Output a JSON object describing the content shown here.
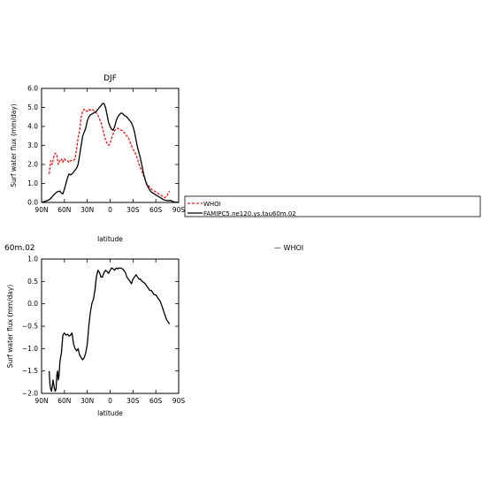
{
  "page": {
    "left_label": "60m.02",
    "right_label": "— WHOI"
  },
  "legend": {
    "items": [
      {
        "label": "WHOI",
        "color": "#e8191a",
        "dash": true
      },
      {
        "label": "FAMIPC5.ne120.ys.tau60m.02",
        "color": "#000000",
        "dash": false
      }
    ]
  },
  "chart_data": [
    {
      "type": "line",
      "title": "DJF",
      "xlabel": "latitude",
      "ylabel": "Surf water flux (mm/day)",
      "xlim": [
        90,
        -90
      ],
      "ylim": [
        0.0,
        6.0
      ],
      "xticks": [
        90,
        60,
        30,
        0,
        -30,
        -60,
        -90
      ],
      "xtick_labels": [
        "90N",
        "60N",
        "30N",
        "0",
        "30S",
        "60S",
        "90S"
      ],
      "yticks": [
        0,
        1,
        2,
        3,
        4,
        5,
        6
      ],
      "ytick_labels": [
        "0.0",
        "1.0",
        "2.0",
        "3.0",
        "4.0",
        "5.0",
        "6.0"
      ],
      "series": [
        {
          "name": "WHOI",
          "color": "#e8191a",
          "dash": true,
          "x": [
            80,
            78,
            76,
            74,
            72,
            70,
            68,
            66,
            64,
            62,
            60,
            58,
            56,
            54,
            52,
            50,
            48,
            46,
            44,
            42,
            40,
            38,
            36,
            34,
            32,
            30,
            28,
            26,
            24,
            22,
            20,
            18,
            16,
            14,
            12,
            10,
            8,
            6,
            4,
            2,
            0,
            -2,
            -4,
            -6,
            -8,
            -10,
            -12,
            -14,
            -16,
            -18,
            -20,
            -22,
            -24,
            -26,
            -28,
            -30,
            -32,
            -34,
            -36,
            -38,
            -40,
            -42,
            -44,
            -46,
            -48,
            -50,
            -52,
            -54,
            -56,
            -58,
            -60,
            -62,
            -64,
            -66,
            -68,
            -70,
            -72,
            -74,
            -76,
            -78
          ],
          "y": [
            1.5,
            2.2,
            2.0,
            2.4,
            2.6,
            2.5,
            2.0,
            2.2,
            2.3,
            2.1,
            2.3,
            2.2,
            2.2,
            2.1,
            2.2,
            2.2,
            2.2,
            2.3,
            2.8,
            3.4,
            3.8,
            4.5,
            4.8,
            4.9,
            4.8,
            4.8,
            4.9,
            4.85,
            4.9,
            4.85,
            4.8,
            4.7,
            4.6,
            4.4,
            4.2,
            3.9,
            3.6,
            3.3,
            3.1,
            3.0,
            3.1,
            3.4,
            3.6,
            3.8,
            3.85,
            3.9,
            3.85,
            3.8,
            3.8,
            3.7,
            3.6,
            3.5,
            3.4,
            3.2,
            3.0,
            2.8,
            2.7,
            2.5,
            2.3,
            2.0,
            1.8,
            1.6,
            1.4,
            1.2,
            1.0,
            0.9,
            0.8,
            0.7,
            0.65,
            0.6,
            0.55,
            0.5,
            0.45,
            0.4,
            0.35,
            0.3,
            0.25,
            0.3,
            0.45,
            0.6
          ]
        },
        {
          "name": "FAMIPC5.ne120.ys.tau60m.02",
          "color": "#000000",
          "dash": false,
          "x": [
            90,
            86,
            82,
            78,
            74,
            70,
            66,
            64,
            62,
            60,
            58,
            56,
            54,
            52,
            50,
            48,
            46,
            44,
            42,
            40,
            38,
            36,
            34,
            32,
            30,
            28,
            26,
            24,
            22,
            20,
            18,
            16,
            14,
            12,
            10,
            8,
            6,
            4,
            2,
            0,
            -2,
            -4,
            -6,
            -8,
            -10,
            -12,
            -14,
            -16,
            -18,
            -20,
            -22,
            -24,
            -26,
            -28,
            -30,
            -32,
            -34,
            -36,
            -38,
            -40,
            -42,
            -44,
            -46,
            -48,
            -50,
            -52,
            -54,
            -56,
            -58,
            -60,
            -62,
            -64,
            -66,
            -68,
            -70,
            -72,
            -74,
            -76,
            -78,
            -80,
            -82,
            -84,
            -86,
            -88,
            -90
          ],
          "y": [
            0.0,
            0.05,
            0.1,
            0.2,
            0.4,
            0.55,
            0.6,
            0.5,
            0.45,
            0.7,
            1.0,
            1.3,
            1.5,
            1.45,
            1.5,
            1.6,
            1.7,
            1.8,
            2.0,
            2.5,
            3.0,
            3.5,
            3.7,
            3.9,
            4.3,
            4.5,
            4.6,
            4.65,
            4.7,
            4.75,
            4.8,
            4.9,
            5.0,
            5.1,
            5.2,
            5.2,
            5.0,
            4.6,
            4.2,
            4.0,
            3.85,
            3.8,
            4.0,
            4.3,
            4.5,
            4.6,
            4.7,
            4.7,
            4.6,
            4.55,
            4.5,
            4.4,
            4.3,
            4.2,
            4.0,
            3.7,
            3.3,
            2.9,
            2.6,
            2.3,
            1.9,
            1.5,
            1.2,
            0.95,
            0.8,
            0.65,
            0.55,
            0.5,
            0.45,
            0.4,
            0.35,
            0.3,
            0.25,
            0.2,
            0.15,
            0.12,
            0.1,
            0.1,
            0.1,
            0.1,
            0.05,
            0.03,
            0.02,
            0.01,
            0.0
          ]
        }
      ]
    },
    {
      "type": "line",
      "title": "",
      "xlabel": "latitude",
      "ylabel": "Surf water flux (mm/day)",
      "xlim": [
        90,
        -90
      ],
      "ylim": [
        -2.0,
        1.0
      ],
      "xticks": [
        90,
        60,
        30,
        0,
        -30,
        -60,
        -90
      ],
      "xtick_labels": [
        "90N",
        "60N",
        "30N",
        "0",
        "30S",
        "60S",
        "90S"
      ],
      "yticks": [
        -2.0,
        -1.5,
        -1.0,
        -0.5,
        0.0,
        0.5,
        1.0
      ],
      "ytick_labels": [
        "−2.0",
        "−1.5",
        "−1.0",
        "−0.5",
        "0.0",
        "0.5",
        "1.0"
      ],
      "series": [
        {
          "color": "#000000",
          "dash": false,
          "x": [
            80,
            79,
            78,
            77,
            76,
            75,
            74,
            73,
            72,
            71,
            70,
            69,
            68,
            67,
            66,
            65,
            64,
            62,
            60,
            58,
            56,
            54,
            52,
            50,
            48,
            46,
            44,
            42,
            40,
            38,
            36,
            34,
            32,
            30,
            28,
            26,
            24,
            22,
            20,
            18,
            16,
            14,
            12,
            10,
            8,
            6,
            4,
            2,
            0,
            -2,
            -4,
            -6,
            -8,
            -10,
            -12,
            -14,
            -16,
            -18,
            -20,
            -22,
            -24,
            -26,
            -28,
            -30,
            -32,
            -34,
            -36,
            -38,
            -40,
            -42,
            -44,
            -46,
            -48,
            -50,
            -52,
            -54,
            -56,
            -58,
            -60,
            -62,
            -64,
            -66,
            -68,
            -70,
            -72,
            -74,
            -76,
            -78
          ],
          "y": [
            -1.5,
            -1.8,
            -1.9,
            -1.95,
            -1.85,
            -1.7,
            -1.8,
            -1.9,
            -1.95,
            -1.9,
            -1.6,
            -1.5,
            -1.7,
            -1.6,
            -1.3,
            -1.2,
            -1.1,
            -0.7,
            -0.65,
            -0.7,
            -0.68,
            -0.72,
            -0.7,
            -0.65,
            -0.9,
            -1.0,
            -1.05,
            -1.0,
            -1.15,
            -1.2,
            -1.25,
            -1.2,
            -1.1,
            -0.9,
            -0.5,
            -0.2,
            0.0,
            0.1,
            0.3,
            0.6,
            0.75,
            0.7,
            0.6,
            0.6,
            0.7,
            0.75,
            0.72,
            0.68,
            0.75,
            0.8,
            0.78,
            0.75,
            0.8,
            0.78,
            0.8,
            0.8,
            0.78,
            0.75,
            0.7,
            0.6,
            0.55,
            0.5,
            0.45,
            0.55,
            0.6,
            0.65,
            0.6,
            0.55,
            0.55,
            0.5,
            0.48,
            0.45,
            0.4,
            0.35,
            0.3,
            0.3,
            0.25,
            0.2,
            0.2,
            0.15,
            0.1,
            0.05,
            -0.05,
            -0.15,
            -0.25,
            -0.35,
            -0.4,
            -0.45
          ]
        }
      ]
    }
  ]
}
